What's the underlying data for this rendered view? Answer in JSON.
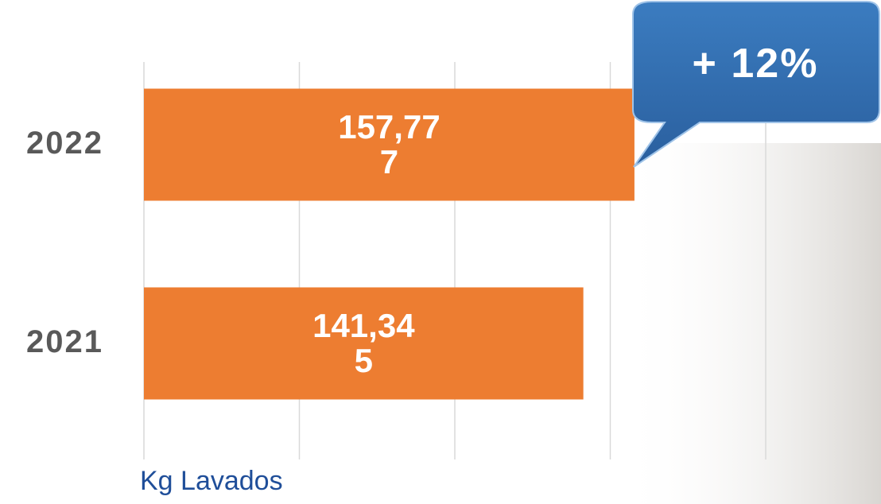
{
  "chart_data": {
    "type": "bar",
    "orientation": "horizontal",
    "categories": [
      "2022",
      "2021"
    ],
    "series": [
      {
        "name": "Kg Lavados",
        "color": "#ed7d31",
        "values": [
          157777,
          141345
        ],
        "value_labels": [
          "157,777",
          "141,345"
        ]
      }
    ],
    "xlim": [
      0,
      200000
    ],
    "xticks": [
      0,
      50000,
      100000,
      150000,
      200000
    ],
    "grid": true,
    "annotation": "+ 12%"
  }
}
